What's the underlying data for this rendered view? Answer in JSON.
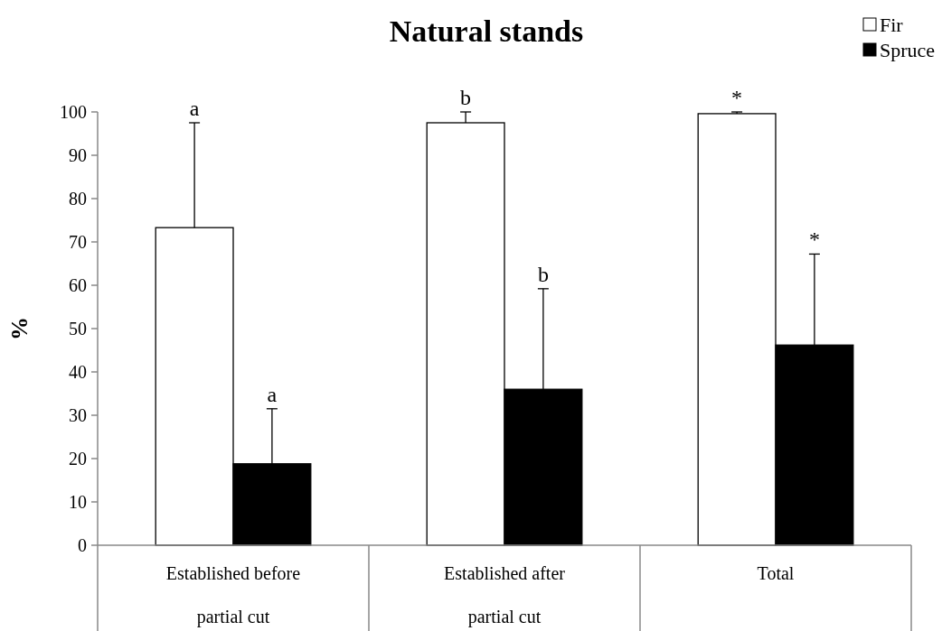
{
  "chart_data": {
    "type": "bar",
    "title": "Natural stands",
    "ylabel": "%",
    "categories": [
      "Established before partial cut",
      "Established after partial cut",
      "Total"
    ],
    "series": [
      {
        "name": "Fir",
        "color": "#ffffff",
        "values": [
          73.3,
          97.5,
          99.6
        ],
        "errors": [
          24.2,
          2.5,
          0.4
        ]
      },
      {
        "name": "Spruce",
        "color": "#000000",
        "values": [
          18.8,
          36,
          46.2
        ],
        "errors": [
          12.7,
          23.2,
          21
        ]
      }
    ],
    "ylim": [
      0,
      100
    ],
    "yticks": [
      0,
      10,
      20,
      30,
      40,
      50,
      60,
      70,
      80,
      90,
      100
    ],
    "grid": false,
    "legend": "top right",
    "annotations": [
      "a",
      "a",
      "b",
      "b",
      "*",
      "*"
    ]
  }
}
